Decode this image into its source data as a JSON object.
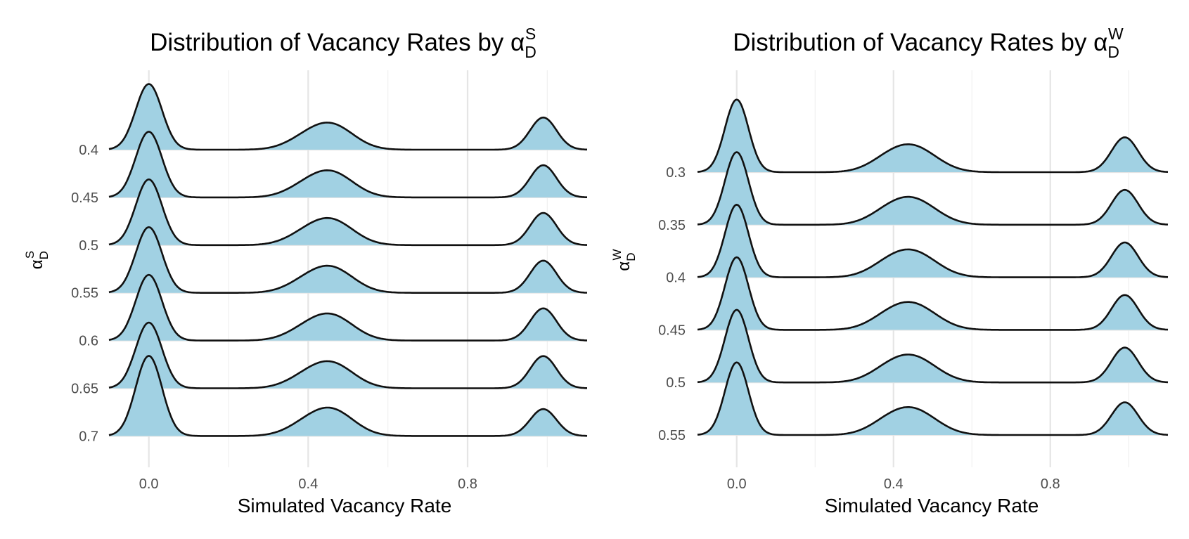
{
  "chart_data": [
    {
      "type": "ridgeline",
      "title": "Distribution of Vacancy Rates by α",
      "title_symbol_sub": "D",
      "title_symbol_sup": "S",
      "xlabel": "Simulated Vacancy Rate",
      "ylabel": "α",
      "ylabel_sub": "D",
      "ylabel_sup": "S",
      "xlim": [
        -0.1,
        1.1
      ],
      "xticks": [
        0.0,
        0.4,
        0.8
      ],
      "xtick_labels": [
        "0.0",
        "0.4",
        "0.8"
      ],
      "grid": true,
      "fill_color": "#a1d1e3",
      "line_color": "#111111",
      "ridge_scale": 1.5,
      "categories": [
        "0.4",
        "0.45",
        "0.5",
        "0.55",
        "0.6",
        "0.65",
        "0.7"
      ],
      "series": [
        {
          "name": "0.4",
          "modes": [
            {
              "mu": 0.0,
              "sigma": 0.033,
              "h": 1.0
            },
            {
              "mu": 0.46,
              "sigma": 0.055,
              "h": 0.36
            },
            {
              "mu": 0.39,
              "sigma": 0.05,
              "h": 0.12
            },
            {
              "mu": 0.99,
              "sigma": 0.033,
              "h": 0.49
            }
          ]
        },
        {
          "name": "0.45",
          "modes": [
            {
              "mu": 0.0,
              "sigma": 0.033,
              "h": 1.0
            },
            {
              "mu": 0.46,
              "sigma": 0.055,
              "h": 0.36
            },
            {
              "mu": 0.39,
              "sigma": 0.05,
              "h": 0.12
            },
            {
              "mu": 0.99,
              "sigma": 0.033,
              "h": 0.49
            }
          ]
        },
        {
          "name": "0.5",
          "modes": [
            {
              "mu": 0.0,
              "sigma": 0.033,
              "h": 1.0
            },
            {
              "mu": 0.46,
              "sigma": 0.055,
              "h": 0.36
            },
            {
              "mu": 0.39,
              "sigma": 0.05,
              "h": 0.12
            },
            {
              "mu": 0.99,
              "sigma": 0.033,
              "h": 0.49
            }
          ]
        },
        {
          "name": "0.55",
          "modes": [
            {
              "mu": 0.0,
              "sigma": 0.033,
              "h": 1.0
            },
            {
              "mu": 0.46,
              "sigma": 0.055,
              "h": 0.36
            },
            {
              "mu": 0.39,
              "sigma": 0.05,
              "h": 0.12
            },
            {
              "mu": 0.99,
              "sigma": 0.033,
              "h": 0.49
            }
          ]
        },
        {
          "name": "0.6",
          "modes": [
            {
              "mu": 0.0,
              "sigma": 0.033,
              "h": 1.0
            },
            {
              "mu": 0.46,
              "sigma": 0.055,
              "h": 0.36
            },
            {
              "mu": 0.39,
              "sigma": 0.05,
              "h": 0.12
            },
            {
              "mu": 0.99,
              "sigma": 0.033,
              "h": 0.49
            }
          ]
        },
        {
          "name": "0.65",
          "modes": [
            {
              "mu": 0.0,
              "sigma": 0.033,
              "h": 1.0
            },
            {
              "mu": 0.46,
              "sigma": 0.055,
              "h": 0.36
            },
            {
              "mu": 0.39,
              "sigma": 0.05,
              "h": 0.12
            },
            {
              "mu": 0.99,
              "sigma": 0.033,
              "h": 0.49
            }
          ]
        },
        {
          "name": "0.7",
          "modes": [
            {
              "mu": 0.0,
              "sigma": 0.033,
              "h": 1.22
            },
            {
              "mu": 0.46,
              "sigma": 0.055,
              "h": 0.38
            },
            {
              "mu": 0.39,
              "sigma": 0.05,
              "h": 0.12
            },
            {
              "mu": 0.99,
              "sigma": 0.033,
              "h": 0.41
            }
          ]
        }
      ]
    },
    {
      "type": "ridgeline",
      "title": "Distribution of Vacancy Rates by α",
      "title_symbol_sub": "D",
      "title_symbol_sup": "W",
      "xlabel": "Simulated Vacancy Rate",
      "ylabel": "α",
      "ylabel_sub": "D",
      "ylabel_sup": "W",
      "xlim": [
        -0.1,
        1.1
      ],
      "xticks": [
        0.0,
        0.4,
        0.8
      ],
      "xtick_labels": [
        "0.0",
        "0.4",
        "0.8"
      ],
      "grid": true,
      "fill_color": "#a1d1e3",
      "line_color": "#111111",
      "ridge_scale": 1.8,
      "categories": [
        "0.3",
        "0.35",
        "0.4",
        "0.45",
        "0.5",
        "0.55"
      ],
      "series": [
        {
          "name": "0.3",
          "modes": [
            {
              "mu": 0.0,
              "sigma": 0.03,
              "h": 1.0
            },
            {
              "mu": 0.45,
              "sigma": 0.06,
              "h": 0.34
            },
            {
              "mu": 0.38,
              "sigma": 0.05,
              "h": 0.1
            },
            {
              "mu": 0.99,
              "sigma": 0.034,
              "h": 0.48
            }
          ]
        },
        {
          "name": "0.35",
          "modes": [
            {
              "mu": 0.0,
              "sigma": 0.03,
              "h": 1.0
            },
            {
              "mu": 0.45,
              "sigma": 0.06,
              "h": 0.34
            },
            {
              "mu": 0.38,
              "sigma": 0.05,
              "h": 0.1
            },
            {
              "mu": 0.99,
              "sigma": 0.034,
              "h": 0.48
            }
          ]
        },
        {
          "name": "0.4",
          "modes": [
            {
              "mu": 0.0,
              "sigma": 0.03,
              "h": 1.0
            },
            {
              "mu": 0.45,
              "sigma": 0.06,
              "h": 0.34
            },
            {
              "mu": 0.38,
              "sigma": 0.05,
              "h": 0.1
            },
            {
              "mu": 0.99,
              "sigma": 0.034,
              "h": 0.48
            }
          ]
        },
        {
          "name": "0.45",
          "modes": [
            {
              "mu": 0.0,
              "sigma": 0.03,
              "h": 1.0
            },
            {
              "mu": 0.45,
              "sigma": 0.06,
              "h": 0.34
            },
            {
              "mu": 0.38,
              "sigma": 0.05,
              "h": 0.1
            },
            {
              "mu": 0.99,
              "sigma": 0.034,
              "h": 0.48
            }
          ]
        },
        {
          "name": "0.5",
          "modes": [
            {
              "mu": 0.0,
              "sigma": 0.03,
              "h": 1.0
            },
            {
              "mu": 0.45,
              "sigma": 0.06,
              "h": 0.34
            },
            {
              "mu": 0.38,
              "sigma": 0.05,
              "h": 0.1
            },
            {
              "mu": 0.99,
              "sigma": 0.034,
              "h": 0.48
            }
          ]
        },
        {
          "name": "0.55",
          "modes": [
            {
              "mu": 0.0,
              "sigma": 0.03,
              "h": 1.0
            },
            {
              "mu": 0.45,
              "sigma": 0.06,
              "h": 0.34
            },
            {
              "mu": 0.38,
              "sigma": 0.05,
              "h": 0.1
            },
            {
              "mu": 0.99,
              "sigma": 0.034,
              "h": 0.45
            }
          ]
        }
      ]
    }
  ]
}
